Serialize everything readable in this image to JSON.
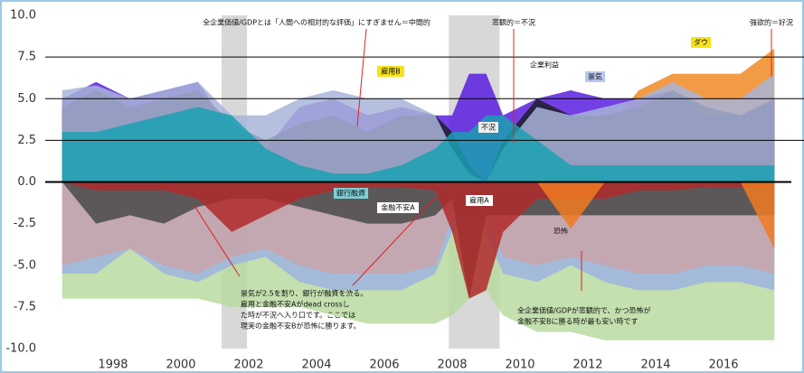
{
  "chart_data": {
    "type": "area",
    "x": [
      1996.5,
      1997.5,
      1998.5,
      1999.5,
      2000.5,
      2001.5,
      2002.5,
      2003.5,
      2004.5,
      2005.5,
      2006.5,
      2007.5,
      2008.0,
      2008.5,
      2009.0,
      2009.5,
      2010.5,
      2011.5,
      2012.5,
      2013.5,
      2014.5,
      2015.5,
      2016.5,
      2017.5
    ],
    "xlim": [
      1996,
      2018
    ],
    "xticks": [
      1998,
      2000,
      2002,
      2004,
      2006,
      2008,
      2010,
      2012,
      2014,
      2016
    ],
    "ylim": [
      -10,
      10
    ],
    "yticks": [
      {
        "value": 10,
        "label": "10.0"
      },
      {
        "value": 7.5,
        "label": "7.5"
      },
      {
        "value": 5,
        "label": "5.0"
      },
      {
        "value": 2.5,
        "label": "2.5"
      },
      {
        "value": 0,
        "label": "0.0"
      },
      {
        "value": -2.5,
        "label": "-2.5"
      },
      {
        "value": -5,
        "label": "-5.0"
      },
      {
        "value": -7.5,
        "label": "-7.5"
      },
      {
        "value": -10,
        "label": "-10.0"
      }
    ],
    "ref_lines": [
      7.5,
      5,
      2.5
    ],
    "shaded_ranges": [
      [
        2001.2,
        2001.95
      ],
      [
        2007.9,
        2009.4
      ]
    ],
    "series": [
      {
        "color": "#b9dba0",
        "values": [
          -7,
          -7,
          -7,
          -7,
          -7,
          -7.5,
          -7.5,
          -7.5,
          -8,
          -8.5,
          -8.5,
          -8.5,
          -8,
          -7,
          -6.5,
          -8,
          -9,
          -9,
          -9.5,
          -9.5,
          -9.5,
          -9.5,
          -9.5,
          -9.5
        ]
      },
      {
        "color": "#9fb3e0",
        "values": [
          -5.5,
          -5.5,
          -4,
          -5.5,
          -6,
          -5,
          -4.5,
          -6,
          -6.5,
          -6.5,
          -6.5,
          -5.5,
          -3,
          -2,
          -3,
          -5.5,
          -6,
          -5,
          -6,
          -6.5,
          -6.5,
          -6,
          -6,
          -6.5
        ]
      },
      {
        "color": "#c9a3a9",
        "values": [
          -5,
          -4.5,
          -4,
          -5,
          -5.5,
          -4.5,
          -4,
          -5,
          -5.5,
          -5.5,
          -5.5,
          -5,
          -2,
          -1,
          -2,
          -4.5,
          -5,
          -4.5,
          -5,
          -5.5,
          -5.5,
          -5,
          -5,
          -5.5
        ]
      },
      {
        "name": "金融不安A",
        "color": "#4a4a4a",
        "values": [
          0,
          -2.5,
          -2,
          -2.5,
          -1.5,
          -1,
          -1,
          -1.5,
          -2,
          -2.5,
          -2.5,
          -2,
          -1,
          -7,
          -2,
          -2,
          -2,
          -2,
          -2,
          -2,
          -2,
          -2,
          -2,
          -2
        ]
      },
      {
        "name": "雇用A",
        "color": "#b02a2a",
        "values": [
          0,
          -0.5,
          -0.5,
          -0.5,
          -1,
          -3,
          -2,
          -1,
          -0.5,
          -0.3,
          -0.3,
          -0.5,
          -3,
          -7,
          -6.5,
          -3,
          -1,
          -1,
          -1,
          -0.5,
          -0.5,
          -0.3,
          -0.3,
          -0.3
        ]
      },
      {
        "name": "恐怖",
        "color": "#f07a22",
        "values": [
          0,
          0,
          0,
          0,
          0,
          0,
          0,
          0,
          0,
          0,
          0,
          0,
          0,
          0,
          0,
          0,
          0,
          -2.8,
          0,
          0,
          0,
          0,
          0,
          -4
        ]
      },
      {
        "name": "ダウ",
        "color": "#f08a24",
        "values": [
          0,
          0,
          0,
          0,
          0,
          0,
          0,
          0,
          2,
          3,
          3,
          2.5,
          0,
          0,
          0,
          0,
          2,
          2.5,
          3,
          5.5,
          6.5,
          6.5,
          6.5,
          8
        ]
      },
      {
        "name": "雇用B",
        "color": "#f2a444",
        "values": [
          0,
          0,
          0,
          0,
          0,
          0,
          1,
          2,
          3.5,
          4,
          4.5,
          3,
          1,
          0,
          0,
          1,
          3,
          3,
          3.5,
          4,
          4,
          3.5,
          3,
          3
        ]
      },
      {
        "name": "不況",
        "color": "#5a1fe0",
        "values": [
          5,
          6,
          5,
          5.5,
          6,
          3,
          2,
          4.5,
          5,
          4,
          4.5,
          4,
          4,
          6.5,
          6.5,
          4,
          5,
          5.5,
          5,
          5,
          5.5,
          4,
          4,
          5
        ]
      },
      {
        "name": "企業利益",
        "color": "#1e1e28",
        "values": [
          4.5,
          5.5,
          4.5,
          5,
          5.5,
          3.5,
          2.5,
          3.5,
          4,
          3,
          4,
          4,
          3,
          1,
          0,
          2.5,
          5,
          4,
          4,
          4.5,
          5.5,
          4.5,
          4,
          5
        ]
      },
      {
        "name": "景気",
        "color": "#a8b4d8",
        "values": [
          5.5,
          5.8,
          5,
          5.5,
          6,
          4,
          4,
          5,
          5.5,
          5,
          5,
          4,
          2,
          0.5,
          0,
          2,
          4.5,
          4,
          4.5,
          5,
          6,
          5,
          5,
          6.5
        ]
      },
      {
        "name": "銀行融資",
        "color": "#1aa0b2",
        "values": [
          3,
          3,
          3.5,
          4,
          4.5,
          4,
          2,
          1,
          0.5,
          0.5,
          1,
          2,
          3,
          3,
          4,
          4,
          2.5,
          1,
          1,
          1,
          1,
          1,
          1,
          1
        ]
      }
    ],
    "annotations": [
      {
        "lines": [
          "全企業価値/GDPとは「人間への相対的な評価」にすぎません＝中間的"
        ]
      },
      {
        "lines": [
          "悲観的＝不況"
        ]
      },
      {
        "lines": [
          "強欲的＝好況"
        ]
      },
      {
        "lines": [
          "景気が2.5を割り、銀行が融資を渋る。",
          "雇用と金融不安Aがdead crossし",
          "た時が不況へ入り口です。ここでは",
          "現実の金融不安Bが恐怖に勝ります。"
        ]
      },
      {
        "lines": [
          "全企業価値/GDPが悲観的で、かつ恐怖が",
          "金融不安Bに勝る時が最も安い時です"
        ]
      }
    ]
  }
}
